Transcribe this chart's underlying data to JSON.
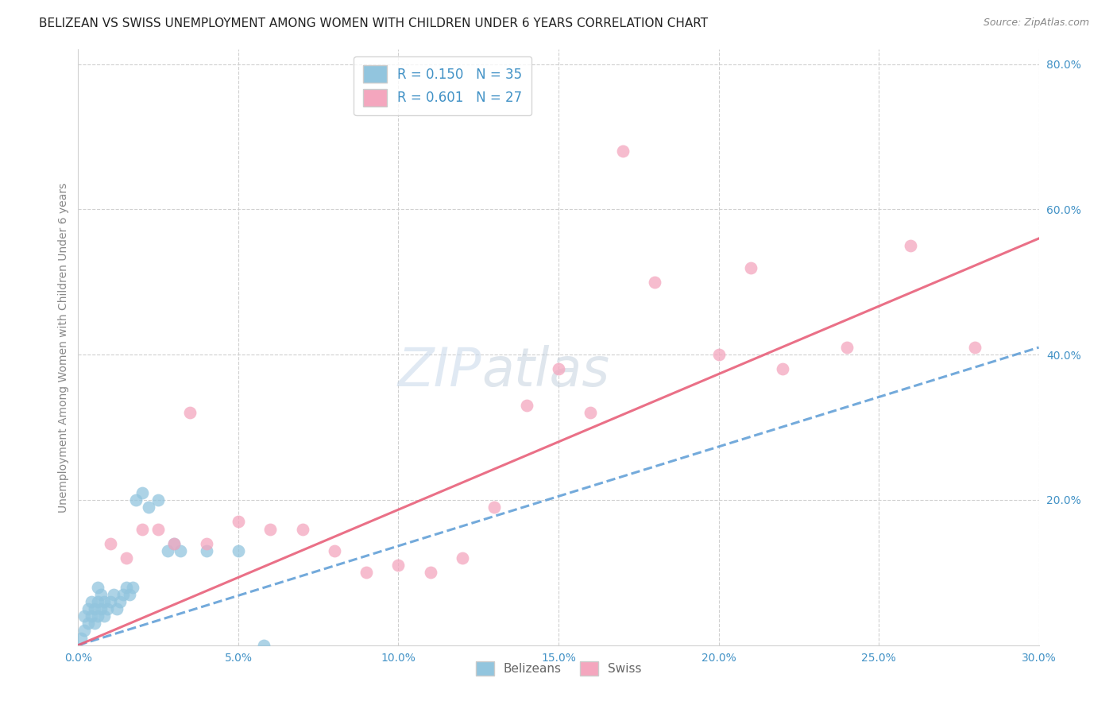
{
  "title": "BELIZEAN VS SWISS UNEMPLOYMENT AMONG WOMEN WITH CHILDREN UNDER 6 YEARS CORRELATION CHART",
  "source": "Source: ZipAtlas.com",
  "ylabel": "Unemployment Among Women with Children Under 6 years",
  "x_tick_labels": [
    "0.0%",
    "5.0%",
    "10.0%",
    "15.0%",
    "20.0%",
    "25.0%",
    "30.0%"
  ],
  "y_tick_labels_right": [
    "80.0%",
    "60.0%",
    "40.0%",
    "20.0%"
  ],
  "xlim": [
    0.0,
    0.3
  ],
  "ylim": [
    0.0,
    0.82
  ],
  "legend_blue_R": "R = 0.150",
  "legend_blue_N": "N = 35",
  "legend_pink_R": "R = 0.601",
  "legend_pink_N": "N = 27",
  "blue_color": "#92c5de",
  "pink_color": "#f4a6be",
  "blue_line_color": "#5b9bd5",
  "pink_line_color": "#e8607a",
  "watermark_zip": "ZIP",
  "watermark_atlas": "atlas",
  "blue_scatter_x": [
    0.001,
    0.002,
    0.002,
    0.003,
    0.003,
    0.004,
    0.004,
    0.005,
    0.005,
    0.006,
    0.006,
    0.006,
    0.007,
    0.007,
    0.008,
    0.008,
    0.009,
    0.01,
    0.011,
    0.012,
    0.013,
    0.014,
    0.015,
    0.016,
    0.017,
    0.018,
    0.02,
    0.022,
    0.025,
    0.028,
    0.03,
    0.032,
    0.04,
    0.05,
    0.058
  ],
  "blue_scatter_y": [
    0.01,
    0.02,
    0.04,
    0.03,
    0.05,
    0.04,
    0.06,
    0.03,
    0.05,
    0.04,
    0.06,
    0.08,
    0.05,
    0.07,
    0.04,
    0.06,
    0.05,
    0.06,
    0.07,
    0.05,
    0.06,
    0.07,
    0.08,
    0.07,
    0.08,
    0.2,
    0.21,
    0.19,
    0.2,
    0.13,
    0.14,
    0.13,
    0.13,
    0.13,
    0.0
  ],
  "pink_scatter_x": [
    0.01,
    0.015,
    0.02,
    0.025,
    0.03,
    0.035,
    0.04,
    0.05,
    0.06,
    0.07,
    0.08,
    0.09,
    0.1,
    0.11,
    0.12,
    0.13,
    0.14,
    0.15,
    0.16,
    0.17,
    0.18,
    0.2,
    0.21,
    0.22,
    0.24,
    0.26,
    0.28
  ],
  "pink_scatter_y": [
    0.14,
    0.12,
    0.16,
    0.16,
    0.14,
    0.32,
    0.14,
    0.17,
    0.16,
    0.16,
    0.13,
    0.1,
    0.11,
    0.1,
    0.12,
    0.19,
    0.33,
    0.38,
    0.32,
    0.68,
    0.5,
    0.4,
    0.52,
    0.38,
    0.41,
    0.55,
    0.41
  ],
  "blue_line_x0": 0.0,
  "blue_line_y0": 0.0,
  "blue_line_x1": 0.3,
  "blue_line_y1": 0.41,
  "pink_line_x0": 0.0,
  "pink_line_y0": 0.0,
  "pink_line_x1": 0.3,
  "pink_line_y1": 0.56,
  "title_fontsize": 11,
  "source_fontsize": 9,
  "axis_label_fontsize": 10,
  "tick_fontsize": 10,
  "legend_fontsize": 12,
  "watermark_fontsize": 48
}
